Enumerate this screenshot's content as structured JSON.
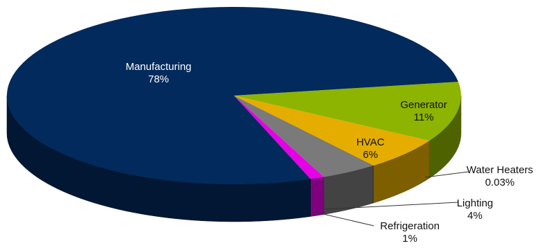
{
  "chart_data": {
    "type": "pie",
    "variant": "3d",
    "title": "",
    "legend": "none",
    "start_angle_deg": -9,
    "depth": 0.18,
    "slices": [
      {
        "name": "Generator",
        "value": 11,
        "label": "11%",
        "color": "#8db400",
        "label_placement": "inside-dark"
      },
      {
        "name": "HVAC",
        "value": 6,
        "label": "6%",
        "color": "#e4ad00",
        "label_placement": "inside-dark"
      },
      {
        "name": "Water Heaters",
        "value": 0.03,
        "label": "0.03%",
        "color": "#2b3a55",
        "label_placement": "callout"
      },
      {
        "name": "Lighting",
        "value": 4,
        "label": "4%",
        "color": "#7a7a7a",
        "label_placement": "callout"
      },
      {
        "name": "Refrigeration",
        "value": 1,
        "label": "1%",
        "color": "#e600e6",
        "label_placement": "callout"
      },
      {
        "name": "Manufacturing",
        "value": 78,
        "label": "78%",
        "color": "#022a5c",
        "label_placement": "inside-light"
      }
    ]
  }
}
